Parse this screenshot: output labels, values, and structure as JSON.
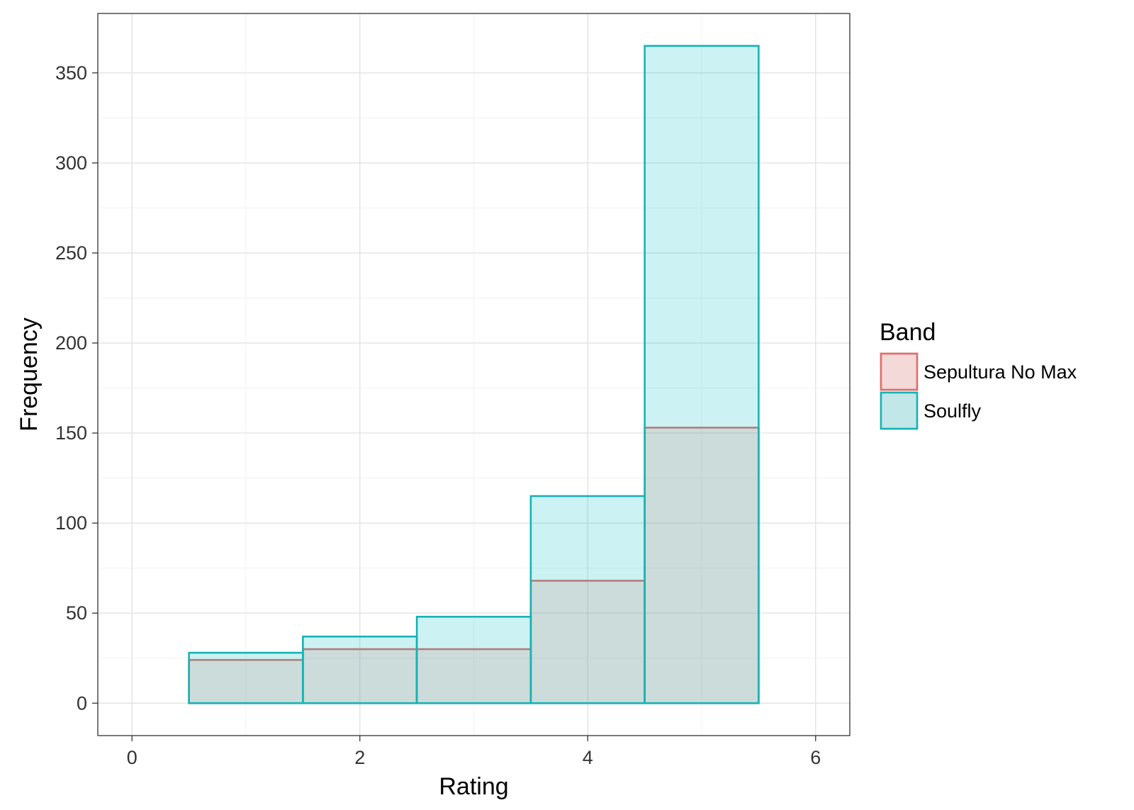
{
  "chart_data": {
    "type": "bar",
    "subtype": "overlapping-histogram",
    "title": "",
    "xlabel": "Rating",
    "ylabel": "Frequency",
    "xlim": [
      -0.3,
      6.3
    ],
    "ylim": [
      -18,
      383
    ],
    "x_ticks": [
      0,
      2,
      4,
      6
    ],
    "y_ticks": [
      0,
      50,
      100,
      150,
      200,
      250,
      300,
      350
    ],
    "grid": true,
    "bins": [
      [
        0.5,
        1.5
      ],
      [
        1.5,
        2.5
      ],
      [
        2.5,
        3.5
      ],
      [
        3.5,
        4.5
      ],
      [
        4.5,
        5.5
      ]
    ],
    "categories": [
      "1",
      "2",
      "3",
      "4",
      "5"
    ],
    "series": [
      {
        "name": "Sepultura No Max",
        "values": [
          24,
          30,
          30,
          68,
          153
        ],
        "color": "#e06d6a",
        "fill": "#f8766d"
      },
      {
        "name": "Soulfly",
        "values": [
          28,
          37,
          48,
          115,
          365
        ],
        "color": "#18b2b4",
        "fill": "#00bfc4"
      }
    ],
    "legend": {
      "title": "Band",
      "position": "right"
    }
  }
}
